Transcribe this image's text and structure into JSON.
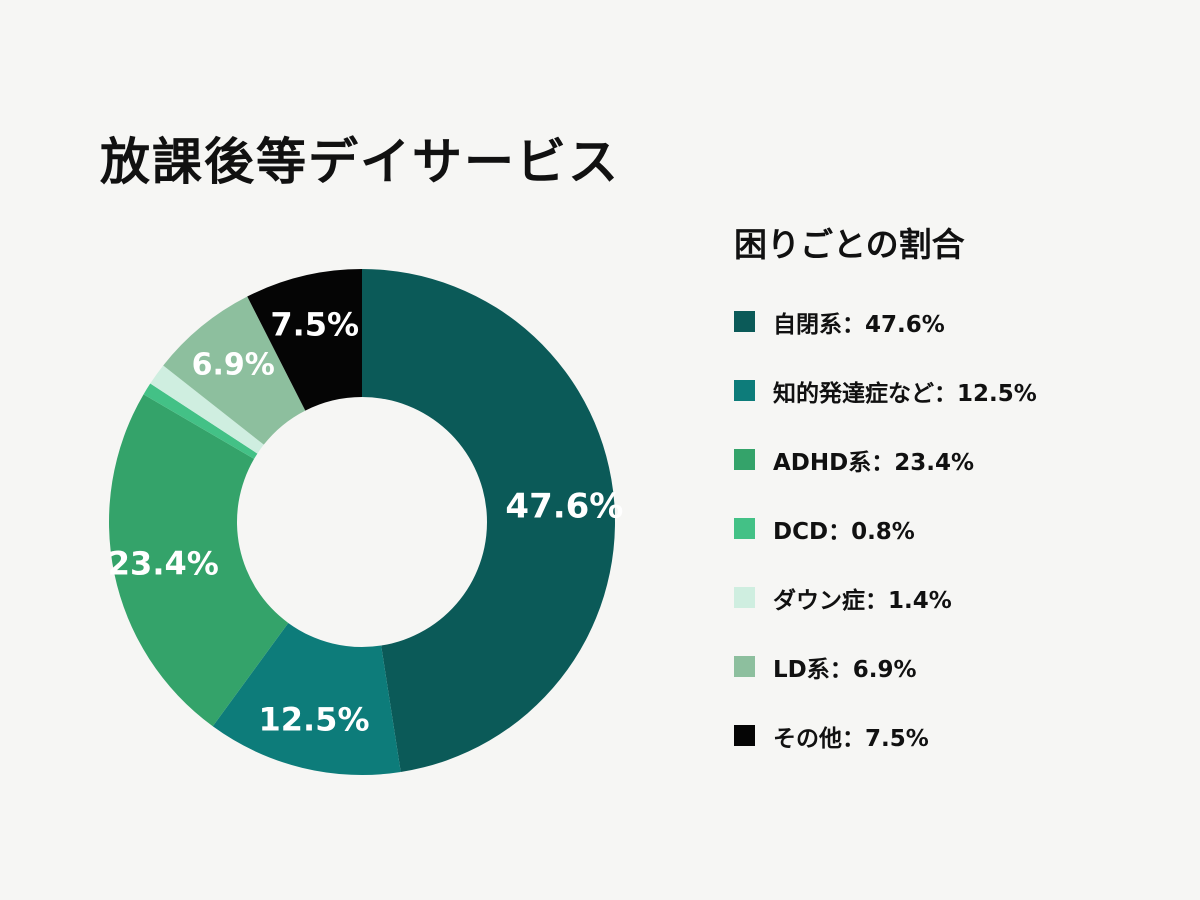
{
  "chart_data": {
    "type": "pie",
    "title": "放課後等デイサービス",
    "legend_title": "困りごとの割合",
    "legend_position": "right",
    "slices": [
      {
        "name": "自閉系",
        "value": 47.6,
        "unit": "%",
        "label": "47.6%",
        "legend_label": "自閉系：47.6%",
        "color": "#0b5a58"
      },
      {
        "name": "知的発達症など",
        "value": 12.5,
        "unit": "%",
        "label": "12.5%",
        "legend_label": "知的発達症など：12.5%",
        "color": "#0d7c7a"
      },
      {
        "name": "ADHD系",
        "value": 23.4,
        "unit": "%",
        "label": "23.4%",
        "legend_label": "ADHD系：23.4%",
        "color": "#34a36a"
      },
      {
        "name": "DCD",
        "value": 0.8,
        "unit": "%",
        "label": "",
        "legend_label": "DCD：0.8%",
        "color": "#43c186"
      },
      {
        "name": "ダウン症",
        "value": 1.4,
        "unit": "%",
        "label": "",
        "legend_label": "ダウン症：1.4%",
        "color": "#cfeee0"
      },
      {
        "name": "LD系",
        "value": 6.9,
        "unit": "%",
        "label": "6.9%",
        "legend_label": "LD系：6.9%",
        "color": "#8dbf9e"
      },
      {
        "name": "その他",
        "value": 7.5,
        "unit": "%",
        "label": "7.5%",
        "legend_label": "その他：7.5%",
        "color": "#050505"
      }
    ]
  }
}
